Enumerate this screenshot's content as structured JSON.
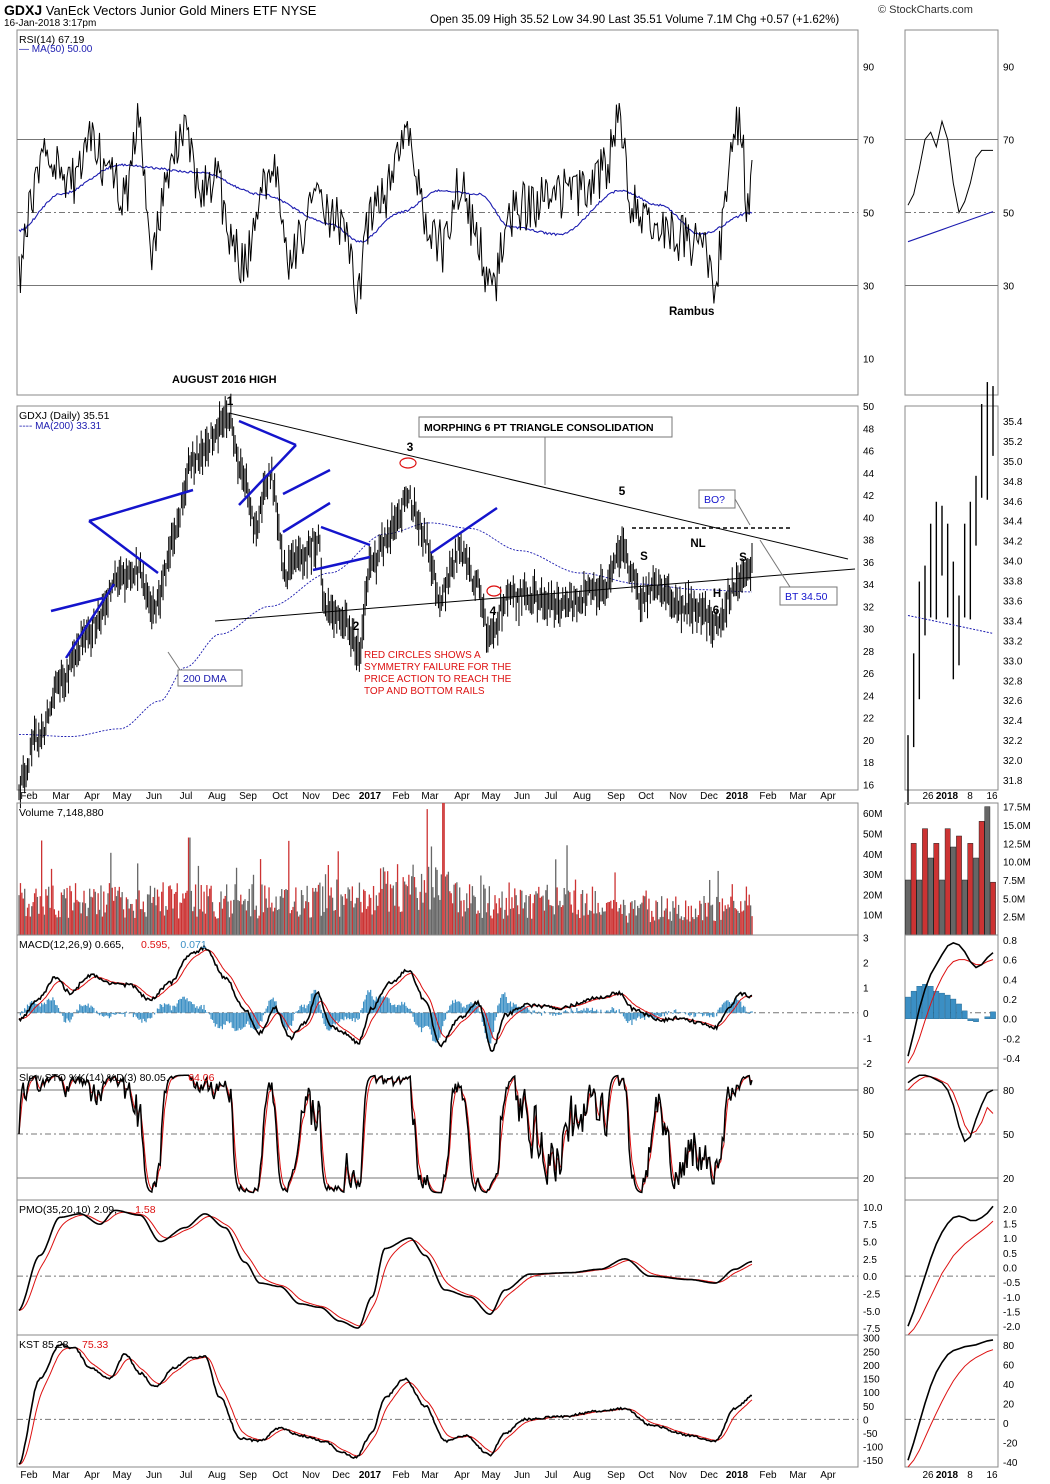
{
  "header": {
    "symbol": "GDXJ",
    "name": "VanEck Vectors Junior Gold Miners ETF",
    "exchange": "NYSE",
    "date": "16-Jan-2018 3:17pm",
    "quote": "Open 35.09  High 35.52  Low 34.90  Last 35.51  Volume 7.1M  Chg +0.57 (+1.62%)",
    "credit": "© StockCharts.com"
  },
  "colors": {
    "price": "#000000",
    "ma200": "#1c1cb0",
    "ma50": "#1c1cb0",
    "annotation_red": "#dd1111",
    "annotation_blue": "#1414cc",
    "volume_up": "#cc3333",
    "volume_down": "#666666",
    "macd_hist": "#3b8fc4"
  },
  "time_axis": {
    "main": [
      "Feb",
      "Mar",
      "Apr",
      "May",
      "Jun",
      "Jul",
      "Aug",
      "Sep",
      "Oct",
      "Nov",
      "Dec",
      "2017",
      "Feb",
      "Mar",
      "Apr",
      "May",
      "Jun",
      "Jul",
      "Aug",
      "Sep",
      "Oct",
      "Nov",
      "Dec",
      "2018",
      "Feb",
      "Mar",
      "Apr"
    ],
    "zoom": [
      "26",
      "2018",
      "8",
      "16"
    ]
  },
  "annotations": {
    "rambus": "Rambus",
    "august_high": "AUGUST 2016 HIGH",
    "triangle_box": "MORPHING 6 PT TRIANGLE CONSOLIDATION",
    "ma200_box": "200 DMA",
    "bo_box": "BO?",
    "bt_box": "BT 34.50",
    "red_note": [
      "RED CIRCLES SHOWS A",
      "SYMMETRY FAILURE FOR THE",
      "PRICE ACTION TO REACH THE",
      "TOP AND BOTTOM RAILS"
    ],
    "points": [
      "1",
      "2",
      "3",
      "4",
      "5",
      "6"
    ],
    "hs": [
      "S",
      "NL",
      "S",
      "H"
    ]
  },
  "chart_data": [
    {
      "type": "line",
      "title": "RSI(14) 67.19",
      "series": [
        {
          "name": "RSI(14) 67.19"
        },
        {
          "name": "MA(50) 50.00"
        }
      ],
      "yticks": [
        10,
        30,
        50,
        70,
        90
      ],
      "ylim": [
        0,
        100
      ],
      "zoom_yticks": [
        30,
        50,
        70,
        90
      ],
      "x": [
        "Jan 2016",
        "Jul 2016",
        "Aug 2016",
        "Dec 2016",
        "Feb 2017",
        "May 2017",
        "Sep 2017",
        "Dec 2017",
        "Jan 2018"
      ],
      "values": [
        33,
        52,
        78,
        28,
        77,
        25,
        75,
        29,
        67
      ],
      "ma_values": [
        45,
        62,
        60,
        47,
        48,
        46,
        58,
        42,
        50
      ]
    },
    {
      "type": "line",
      "title": "GDXJ (Daily) 35.51",
      "series": [
        {
          "name": "GDXJ (Daily) 35.51"
        },
        {
          "name": "MA(200) 33.31"
        }
      ],
      "yticks": [
        16,
        18,
        20,
        22,
        24,
        26,
        28,
        30,
        32,
        34,
        36,
        38,
        40,
        42,
        44,
        46,
        48,
        50
      ],
      "ylim": [
        15.5,
        50
      ],
      "zoom_yticks": [
        31.8,
        32.0,
        32.2,
        32.4,
        32.6,
        32.8,
        33.0,
        33.2,
        33.4,
        33.6,
        33.8,
        34.0,
        34.2,
        34.4,
        34.6,
        34.8,
        35.0,
        35.2,
        35.4
      ],
      "x": [
        "Jan 2016",
        "Mar 2016",
        "Apr 2016",
        "Jun 2016",
        "Aug 2016",
        "Oct 2016",
        "Dec 2016",
        "Feb 2017",
        "May 2017",
        "Jul 2017",
        "Sep 2017",
        "Dec 2017",
        "Jan 2018"
      ],
      "values": [
        16,
        23,
        27,
        38,
        49,
        34,
        28,
        42,
        29,
        32,
        37,
        30,
        35.51
      ],
      "ma_values": [
        20.5,
        20.3,
        21,
        23,
        26.5,
        30,
        33,
        39,
        38,
        35,
        34,
        33.5,
        33.31
      ]
    },
    {
      "type": "bar",
      "title": "Volume 7,148,880",
      "series": [
        {
          "name": "Volume 7,148,880"
        }
      ],
      "yticks": [
        "10M",
        "20M",
        "30M",
        "40M",
        "50M",
        "60M"
      ],
      "ylim": [
        0,
        65
      ],
      "zoom_yticks": [
        "2.5M",
        "5.0M",
        "7.5M",
        "10.0M",
        "12.5M",
        "15.0M",
        "17.5M"
      ],
      "peaks": [
        [
          "Jul 2016",
          48
        ],
        [
          "Feb 2017",
          62
        ],
        [
          "Apr 2017",
          65
        ]
      ]
    },
    {
      "type": "line",
      "title": "MACD(12,26,9) 0.665, 0.595, 0.071",
      "series": [
        {
          "name": "MACD(12,26,9) 0.665"
        },
        {
          "name": "0.595"
        },
        {
          "name": "0.071"
        }
      ],
      "yticks": [
        -2,
        -1,
        0,
        1,
        2,
        3
      ],
      "ylim": [
        -2.2,
        3.1
      ],
      "zoom_yticks": [
        -0.4,
        -0.2,
        0.0,
        0.2,
        0.4,
        0.6,
        0.8
      ]
    },
    {
      "type": "line",
      "title": "Slow STO %K(14) %D(3) 80.05, 64.06",
      "series": [
        {
          "name": "Slow STO %K(14) %D(3) 80.05"
        },
        {
          "name": "64.06"
        }
      ],
      "yticks": [
        20,
        50,
        80
      ],
      "ylim": [
        5,
        95
      ],
      "zoom_yticks": [
        20,
        50,
        80
      ]
    },
    {
      "type": "line",
      "title": "PMO(35,20,10) 2.09, 1.58",
      "series": [
        {
          "name": "PMO(35,20,10) 2.09"
        },
        {
          "name": "1.58"
        }
      ],
      "yticks": [
        -7.5,
        -5.0,
        -2.5,
        0.0,
        2.5,
        5.0,
        7.5,
        10.0
      ],
      "ylim": [
        -8.5,
        11
      ],
      "zoom_yticks": [
        -2.0,
        -1.5,
        -1.0,
        -0.5,
        0.0,
        0.5,
        1.0,
        1.5,
        2.0
      ]
    },
    {
      "type": "line",
      "title": "KST 85.28, 75.33",
      "series": [
        {
          "name": "KST 85.28"
        },
        {
          "name": "75.33"
        }
      ],
      "yticks": [
        -150,
        -100,
        -50,
        0,
        50,
        100,
        150,
        200,
        250,
        300
      ],
      "ylim": [
        -175,
        310
      ],
      "zoom_yticks": [
        -40,
        -20,
        0,
        20,
        40,
        60,
        80
      ]
    }
  ]
}
